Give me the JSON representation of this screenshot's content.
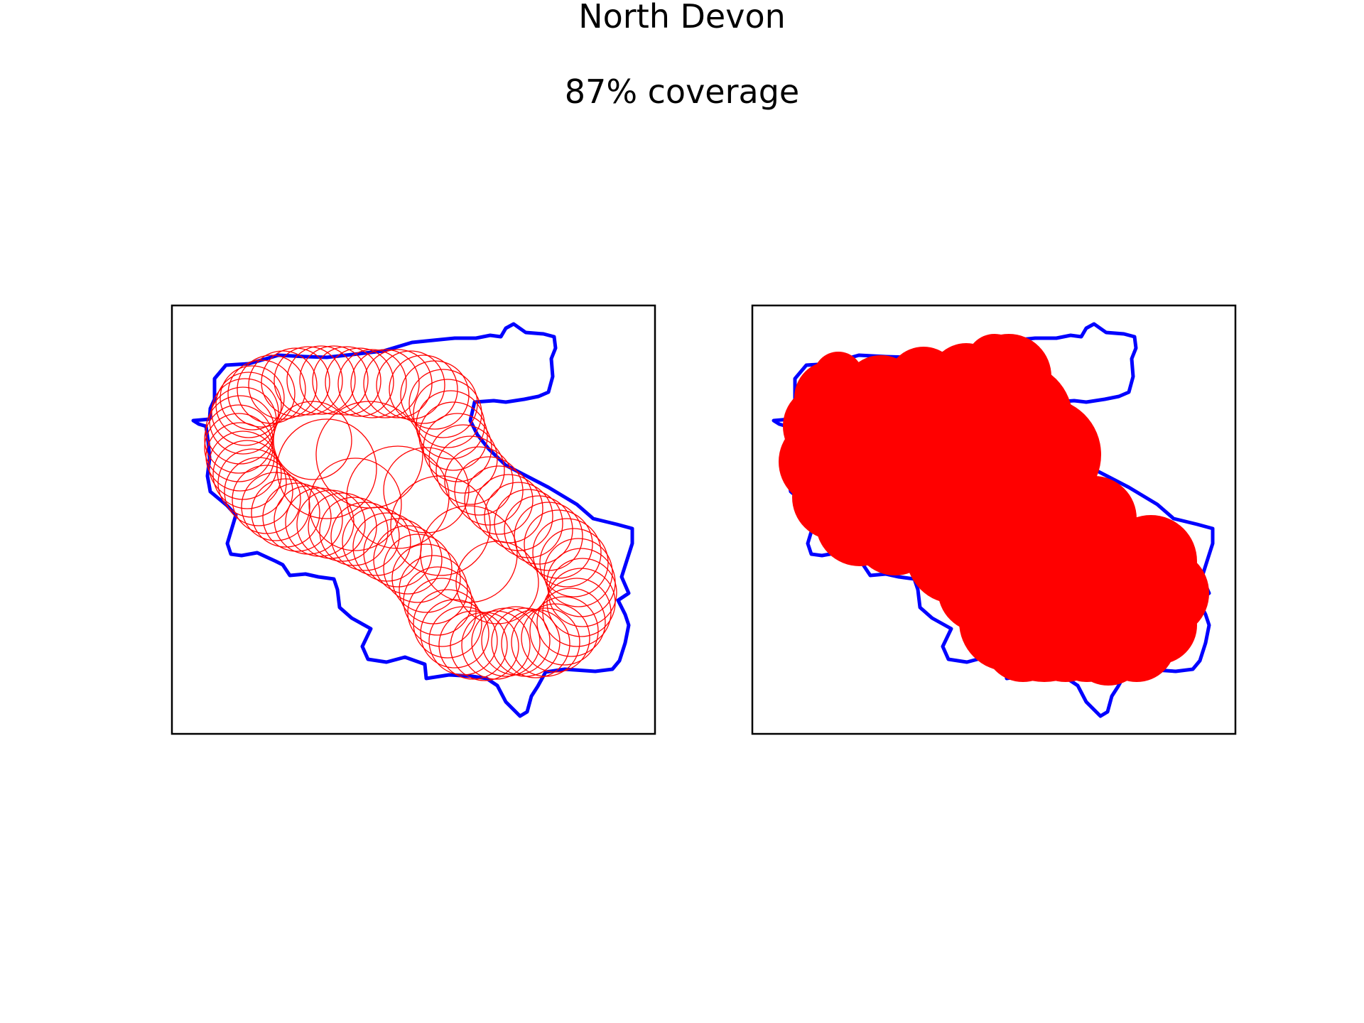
{
  "figure": {
    "title": "North Devon",
    "subtitle": "87% coverage"
  },
  "colors": {
    "boundary": "#0000ff",
    "coverage": "#ff0000",
    "frame": "#000000",
    "background": "#ffffff"
  },
  "panels": [
    {
      "name": "circles-outline",
      "style": "outline"
    },
    {
      "name": "circles-filled",
      "style": "filled"
    }
  ]
}
